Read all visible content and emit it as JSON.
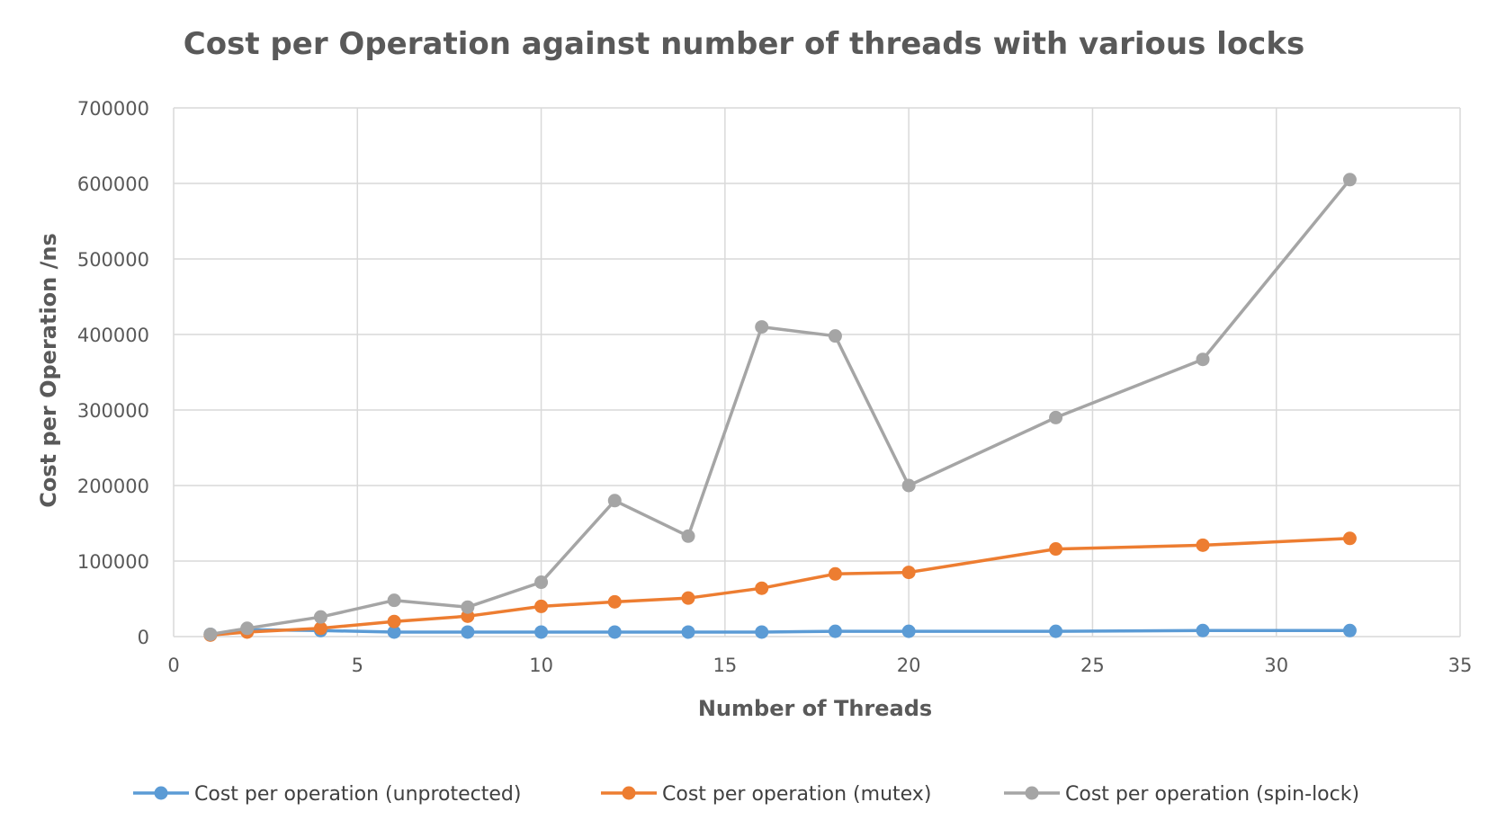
{
  "chart_data": {
    "type": "scatter",
    "title": "Cost per Operation against number of threads with various locks",
    "xlabel": "Number of Threads",
    "ylabel": "Cost per Operation /ns",
    "xlim": [
      0,
      35
    ],
    "ylim": [
      0,
      700000
    ],
    "x_ticks": [
      0,
      5,
      10,
      15,
      20,
      25,
      30,
      35
    ],
    "y_ticks": [
      0,
      100000,
      200000,
      300000,
      400000,
      500000,
      600000,
      700000
    ],
    "grid": true,
    "legend_position": "bottom",
    "series": [
      {
        "name": "Cost per operation (unprotected)",
        "color": "#5b9bd5",
        "x": [
          1,
          2,
          4,
          6,
          8,
          10,
          12,
          14,
          16,
          18,
          20,
          24,
          28,
          32
        ],
        "y": [
          3000,
          9000,
          8000,
          6000,
          6000,
          6000,
          6000,
          6000,
          6000,
          7000,
          7000,
          7000,
          8000,
          8000
        ]
      },
      {
        "name": "Cost per operation (mutex)",
        "color": "#ed7d31",
        "x": [
          1,
          2,
          4,
          6,
          8,
          10,
          12,
          14,
          16,
          18,
          20,
          24,
          28,
          32
        ],
        "y": [
          2000,
          6000,
          11000,
          20000,
          27000,
          40000,
          46000,
          51000,
          64000,
          83000,
          85000,
          116000,
          121000,
          130000
        ]
      },
      {
        "name": "Cost per operation (spin-lock)",
        "color": "#a5a5a5",
        "x": [
          1,
          2,
          4,
          6,
          8,
          10,
          12,
          14,
          16,
          18,
          20,
          24,
          28,
          32
        ],
        "y": [
          3000,
          11000,
          26000,
          48000,
          39000,
          72000,
          180000,
          133000,
          410000,
          398000,
          200000,
          290000,
          367000,
          605000
        ]
      }
    ]
  }
}
